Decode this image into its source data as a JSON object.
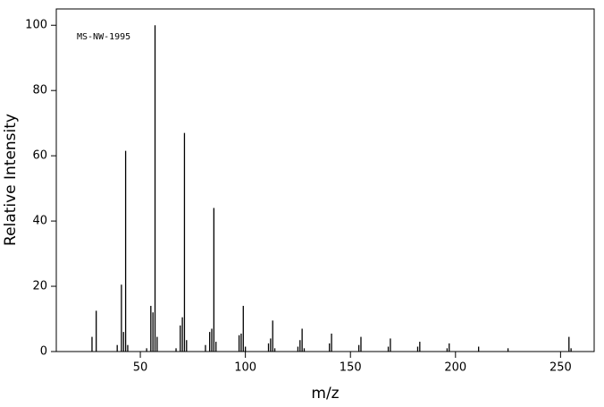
{
  "chart_data": {
    "type": "stick",
    "annotation": "MS-NW-1995",
    "x_label": "m/z",
    "y_label": "Relative Intensity",
    "x": [
      27,
      29,
      39,
      41,
      42,
      43,
      44,
      53,
      55,
      56,
      57,
      58,
      67,
      69,
      70,
      71,
      72,
      81,
      83,
      84,
      85,
      86,
      97,
      98,
      99,
      100,
      111,
      112,
      113,
      114,
      125,
      126,
      127,
      128,
      140,
      141,
      154,
      155,
      168,
      169,
      182,
      183,
      196,
      197,
      211,
      225,
      254,
      255
    ],
    "values": [
      4.5,
      12.5,
      2,
      20.5,
      6,
      61.5,
      2,
      1,
      14,
      12,
      100,
      4.5,
      1,
      8,
      10.5,
      67,
      3.5,
      2,
      6,
      7,
      44,
      3,
      5,
      5.5,
      14,
      1.5,
      2.5,
      4,
      9.5,
      1,
      1.5,
      3.5,
      7,
      1,
      2.5,
      5.5,
      2,
      4.5,
      1.5,
      4,
      1.5,
      3,
      1,
      2.5,
      1.5,
      1,
      4.5,
      1
    ],
    "color": "#000000",
    "xlim": [
      10,
      266
    ],
    "ylim": [
      0,
      105
    ],
    "xticks": [
      50,
      100,
      150,
      200,
      250
    ],
    "yticks": [
      0,
      20,
      40,
      60,
      80,
      100
    ]
  }
}
